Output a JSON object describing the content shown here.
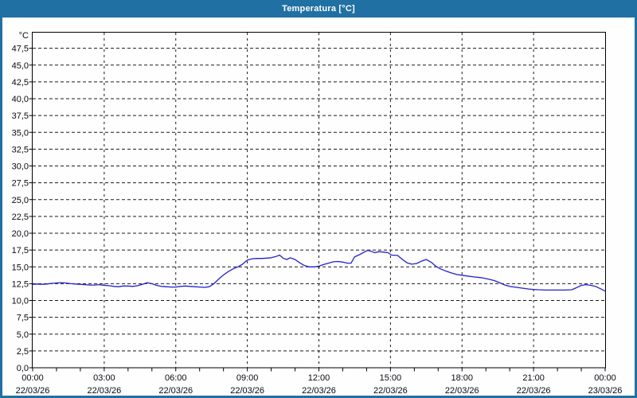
{
  "window": {
    "title": "Temperatura [°C]",
    "colors": {
      "titlebar": "#2170a3",
      "frame_border": "#2170a3",
      "background": "#fdfefd",
      "plot_border": "#000000",
      "gridline": "#1a1a1a",
      "axis_text": "#0a0a14"
    }
  },
  "chart_data": {
    "type": "line",
    "title": "Temperatura [°C]",
    "y_unit_label": "°C",
    "ylabel": "°C",
    "xlabel": "",
    "ylim": [
      0,
      50
    ],
    "y_tick_step": 2.5,
    "y_tick_labels": [
      "0,0",
      "2,5",
      "5,0",
      "7,5",
      "10,0",
      "12,5",
      "15,0",
      "17,5",
      "20,0",
      "22,5",
      "25,0",
      "27,5",
      "30,0",
      "32,5",
      "35,0",
      "37,5",
      "40,0",
      "42,5",
      "45,0",
      "47,5"
    ],
    "x_span_hours": 24,
    "x_major_tick_interval_hours": 3,
    "x_minor_tick_interval_hours": 1,
    "grid": "dashed",
    "legend_position": "none",
    "x_ticks": [
      {
        "time": "00:00",
        "date": "22/03/26"
      },
      {
        "time": "03:00",
        "date": "22/03/26"
      },
      {
        "time": "06:00",
        "date": "22/03/26"
      },
      {
        "time": "09:00",
        "date": "22/03/26"
      },
      {
        "time": "12:00",
        "date": "22/03/26"
      },
      {
        "time": "15:00",
        "date": "22/03/26"
      },
      {
        "time": "18:00",
        "date": "22/03/26"
      },
      {
        "time": "21:00",
        "date": "22/03/26"
      },
      {
        "time": "00:00",
        "date": "23/03/26"
      }
    ],
    "series": [
      {
        "name": "Temperatura",
        "color": "#2222cc",
        "points": [
          [
            0,
            12.4
          ],
          [
            0.2,
            12.45
          ],
          [
            0.4,
            12.4
          ],
          [
            0.6,
            12.45
          ],
          [
            0.8,
            12.55
          ],
          [
            1,
            12.6
          ],
          [
            1.2,
            12.65
          ],
          [
            1.4,
            12.6
          ],
          [
            1.6,
            12.5
          ],
          [
            1.8,
            12.45
          ],
          [
            2,
            12.4
          ],
          [
            2.2,
            12.35
          ],
          [
            2.4,
            12.3
          ],
          [
            2.6,
            12.3
          ],
          [
            2.8,
            12.35
          ],
          [
            3,
            12.25
          ],
          [
            3.2,
            12.2
          ],
          [
            3.4,
            12.1
          ],
          [
            3.6,
            12.05
          ],
          [
            3.8,
            12.15
          ],
          [
            4,
            12.15
          ],
          [
            4.2,
            12.1
          ],
          [
            4.4,
            12.2
          ],
          [
            4.6,
            12.4
          ],
          [
            4.8,
            12.65
          ],
          [
            5,
            12.5
          ],
          [
            5.2,
            12.25
          ],
          [
            5.4,
            12.1
          ],
          [
            5.6,
            12.05
          ],
          [
            5.8,
            12
          ],
          [
            6,
            12
          ],
          [
            6.2,
            12.1
          ],
          [
            6.4,
            12.15
          ],
          [
            6.6,
            12.1
          ],
          [
            6.8,
            12.05
          ],
          [
            7,
            12
          ],
          [
            7.2,
            11.95
          ],
          [
            7.4,
            12.05
          ],
          [
            7.6,
            12.5
          ],
          [
            7.8,
            13.2
          ],
          [
            8,
            13.8
          ],
          [
            8.2,
            14.3
          ],
          [
            8.4,
            14.7
          ],
          [
            8.6,
            15
          ],
          [
            8.8,
            15.4
          ],
          [
            9,
            16
          ],
          [
            9.2,
            16.2
          ],
          [
            9.4,
            16.25
          ],
          [
            9.6,
            16.25
          ],
          [
            9.8,
            16.3
          ],
          [
            10,
            16.35
          ],
          [
            10.2,
            16.55
          ],
          [
            10.35,
            16.75
          ],
          [
            10.5,
            16.3
          ],
          [
            10.65,
            16.1
          ],
          [
            10.8,
            16.35
          ],
          [
            11,
            16.1
          ],
          [
            11.2,
            15.6
          ],
          [
            11.4,
            15.2
          ],
          [
            11.6,
            15
          ],
          [
            11.8,
            15
          ],
          [
            12,
            15.1
          ],
          [
            12.2,
            15.35
          ],
          [
            12.4,
            15.55
          ],
          [
            12.6,
            15.75
          ],
          [
            12.8,
            15.8
          ],
          [
            13,
            15.7
          ],
          [
            13.2,
            15.55
          ],
          [
            13.35,
            15.55
          ],
          [
            13.5,
            16.5
          ],
          [
            13.7,
            16.8
          ],
          [
            13.9,
            17.2
          ],
          [
            14.05,
            17.45
          ],
          [
            14.2,
            17.3
          ],
          [
            14.35,
            17.1
          ],
          [
            14.5,
            17.25
          ],
          [
            14.7,
            17.2
          ],
          [
            14.9,
            17.1
          ],
          [
            15.05,
            16.75
          ],
          [
            15.3,
            16.7
          ],
          [
            15.5,
            16.1
          ],
          [
            15.7,
            15.6
          ],
          [
            15.9,
            15.4
          ],
          [
            16.1,
            15.5
          ],
          [
            16.3,
            15.85
          ],
          [
            16.5,
            16.1
          ],
          [
            16.7,
            15.7
          ],
          [
            16.9,
            15.1
          ],
          [
            17.1,
            14.7
          ],
          [
            17.3,
            14.4
          ],
          [
            17.55,
            14.1
          ],
          [
            17.8,
            13.85
          ],
          [
            18,
            13.75
          ],
          [
            18.2,
            13.65
          ],
          [
            18.5,
            13.5
          ],
          [
            18.8,
            13.4
          ],
          [
            19,
            13.25
          ],
          [
            19.2,
            13.1
          ],
          [
            19.4,
            12.9
          ],
          [
            19.6,
            12.6
          ],
          [
            19.8,
            12.3
          ],
          [
            20,
            12.1
          ],
          [
            20.2,
            12
          ],
          [
            20.5,
            11.85
          ],
          [
            20.8,
            11.7
          ],
          [
            21,
            11.65
          ],
          [
            21.2,
            11.6
          ],
          [
            21.5,
            11.55
          ],
          [
            21.8,
            11.55
          ],
          [
            22,
            11.55
          ],
          [
            22.3,
            11.55
          ],
          [
            22.6,
            11.6
          ],
          [
            22.8,
            11.9
          ],
          [
            23,
            12.25
          ],
          [
            23.2,
            12.35
          ],
          [
            23.4,
            12.25
          ],
          [
            23.6,
            12.1
          ],
          [
            23.8,
            11.75
          ],
          [
            24,
            11.4
          ]
        ]
      }
    ]
  }
}
